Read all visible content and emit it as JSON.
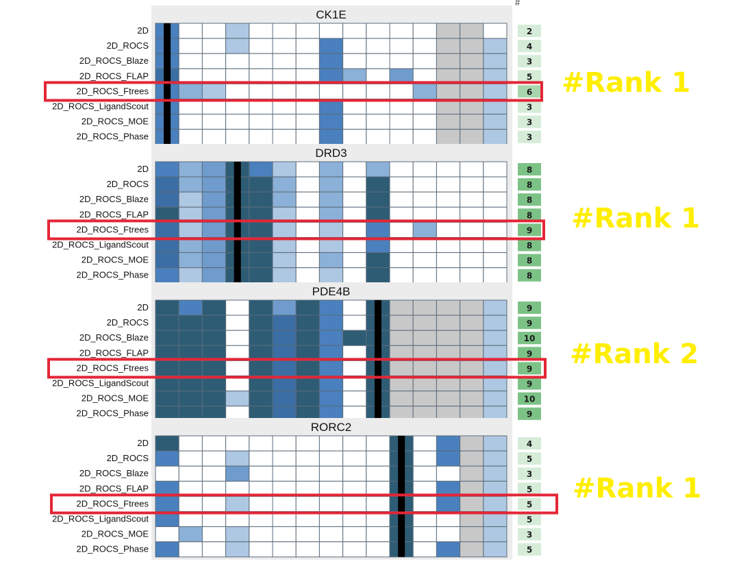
{
  "header": {
    "count_symbol": "#"
  },
  "palette": {
    "0": "#ffffff",
    "1": "#aec7e2",
    "2": "#8cb1d8",
    "3": "#6f9ccd",
    "4": "#4a80bd",
    "5": "#3a6ea4",
    "6": "#2e5c75",
    "7": "#2f5f6f",
    "8": "#c8c8c8",
    "9": "#000000",
    "grid": "#5b6b7b",
    "panel_bg": "#ececec",
    "highlight": "#e32636",
    "rank_text": "#ffee00",
    "count_light": "#d6ecd9",
    "count_mid": "#a8d5ad",
    "count_dark": "#7cc286"
  },
  "chart_data": {
    "type": "heatmap",
    "row_labels": [
      "2D",
      "2D_ROCS",
      "2D_ROCS_Blaze",
      "2D_ROCS_FLAP",
      "2D_ROCS_Ftrees",
      "2D_ROCS_LigandScout",
      "2D_ROCS_MOE",
      "2D_ROCS_Phase"
    ],
    "panels": [
      {
        "title": "CK1E",
        "rank_label": "#Rank 1",
        "highlight_row": 4,
        "counts": [
          "2",
          "4",
          "3",
          "5",
          "6",
          "3",
          "3",
          "3"
        ],
        "cells": [
          [
            4,
            0,
            0,
            1,
            0,
            0,
            0,
            0,
            0,
            0,
            0,
            0,
            8,
            8,
            0
          ],
          [
            4,
            0,
            0,
            1,
            0,
            0,
            0,
            4,
            0,
            0,
            0,
            0,
            8,
            8,
            1
          ],
          [
            4,
            0,
            0,
            0,
            0,
            0,
            0,
            4,
            0,
            0,
            0,
            0,
            8,
            8,
            1
          ],
          [
            5,
            0,
            0,
            0,
            0,
            0,
            0,
            4,
            2,
            0,
            3,
            0,
            8,
            8,
            1
          ],
          [
            4,
            2,
            1,
            0,
            0,
            0,
            0,
            0,
            0,
            0,
            0,
            2,
            8,
            8,
            1
          ],
          [
            4,
            0,
            0,
            0,
            0,
            0,
            0,
            4,
            0,
            0,
            0,
            0,
            8,
            8,
            1
          ],
          [
            4,
            0,
            0,
            0,
            0,
            0,
            0,
            4,
            0,
            0,
            0,
            0,
            8,
            8,
            1
          ],
          [
            4,
            0,
            0,
            0,
            0,
            0,
            0,
            4,
            0,
            0,
            0,
            0,
            8,
            8,
            1
          ]
        ],
        "black_col": 0
      },
      {
        "title": "DRD3",
        "rank_label": "#Rank 1",
        "highlight_row": 4,
        "counts": [
          "8",
          "8",
          "8",
          "8",
          "9",
          "8",
          "8",
          "8"
        ],
        "cells": [
          [
            4,
            2,
            3,
            6,
            4,
            1,
            0,
            2,
            0,
            2,
            0,
            0,
            0,
            0,
            0
          ],
          [
            5,
            2,
            3,
            6,
            6,
            2,
            0,
            2,
            0,
            6,
            0,
            0,
            0,
            0,
            0
          ],
          [
            5,
            1,
            3,
            6,
            6,
            2,
            0,
            2,
            0,
            6,
            0,
            0,
            0,
            0,
            0
          ],
          [
            6,
            1,
            3,
            6,
            6,
            1,
            0,
            2,
            0,
            6,
            0,
            0,
            0,
            0,
            0
          ],
          [
            5,
            1,
            3,
            6,
            6,
            1,
            0,
            1,
            0,
            4,
            0,
            2,
            0,
            0,
            0
          ],
          [
            5,
            2,
            3,
            6,
            6,
            1,
            0,
            1,
            0,
            4,
            0,
            0,
            0,
            0,
            0
          ],
          [
            5,
            2,
            3,
            6,
            6,
            1,
            0,
            2,
            0,
            6,
            0,
            0,
            0,
            0,
            0
          ],
          [
            4,
            1,
            3,
            6,
            6,
            1,
            0,
            1,
            0,
            6,
            0,
            0,
            0,
            0,
            0
          ]
        ],
        "black_col": 3
      },
      {
        "title": "PDE4B",
        "rank_label": "#Rank 2",
        "highlight_row": 4,
        "counts": [
          "9",
          "9",
          "10",
          "9",
          "9",
          "9",
          "10",
          "9"
        ],
        "cells": [
          [
            6,
            4,
            6,
            0,
            6,
            3,
            6,
            4,
            0,
            6,
            8,
            8,
            8,
            8,
            1
          ],
          [
            6,
            6,
            6,
            0,
            6,
            5,
            6,
            4,
            0,
            6,
            8,
            8,
            8,
            8,
            1
          ],
          [
            6,
            6,
            6,
            0,
            6,
            5,
            6,
            4,
            6,
            6,
            8,
            8,
            8,
            8,
            1
          ],
          [
            6,
            6,
            6,
            0,
            6,
            5,
            6,
            4,
            0,
            6,
            8,
            8,
            8,
            8,
            1
          ],
          [
            6,
            6,
            6,
            0,
            6,
            5,
            6,
            4,
            0,
            6,
            8,
            8,
            8,
            8,
            1
          ],
          [
            6,
            6,
            6,
            0,
            6,
            5,
            6,
            4,
            0,
            6,
            8,
            8,
            8,
            8,
            1
          ],
          [
            6,
            6,
            6,
            1,
            6,
            5,
            6,
            4,
            0,
            6,
            8,
            8,
            8,
            8,
            1
          ],
          [
            6,
            6,
            6,
            0,
            6,
            5,
            6,
            4,
            0,
            6,
            8,
            8,
            8,
            8,
            1
          ]
        ],
        "black_col": 9
      },
      {
        "title": "RORC2",
        "rank_label": "#Rank 1",
        "highlight_row": 4,
        "counts": [
          "4",
          "5",
          "3",
          "5",
          "5",
          "5",
          "3",
          "5"
        ],
        "cells": [
          [
            6,
            0,
            0,
            0,
            0,
            0,
            0,
            0,
            0,
            0,
            6,
            0,
            4,
            8,
            1
          ],
          [
            4,
            0,
            0,
            1,
            0,
            0,
            0,
            0,
            0,
            0,
            6,
            0,
            4,
            8,
            1
          ],
          [
            0,
            0,
            0,
            3,
            0,
            0,
            0,
            0,
            0,
            0,
            6,
            0,
            0,
            8,
            1
          ],
          [
            4,
            0,
            0,
            0,
            0,
            0,
            0,
            0,
            0,
            0,
            6,
            0,
            4,
            8,
            1
          ],
          [
            4,
            0,
            0,
            1,
            0,
            0,
            0,
            0,
            0,
            0,
            6,
            0,
            4,
            8,
            1
          ],
          [
            4,
            0,
            0,
            0,
            0,
            0,
            0,
            0,
            0,
            0,
            6,
            0,
            0,
            8,
            1
          ],
          [
            0,
            2,
            0,
            1,
            0,
            0,
            0,
            0,
            0,
            0,
            6,
            0,
            0,
            8,
            1
          ],
          [
            4,
            0,
            0,
            1,
            0,
            0,
            0,
            0,
            0,
            0,
            6,
            0,
            4,
            8,
            1
          ]
        ],
        "black_col": 10
      }
    ]
  }
}
